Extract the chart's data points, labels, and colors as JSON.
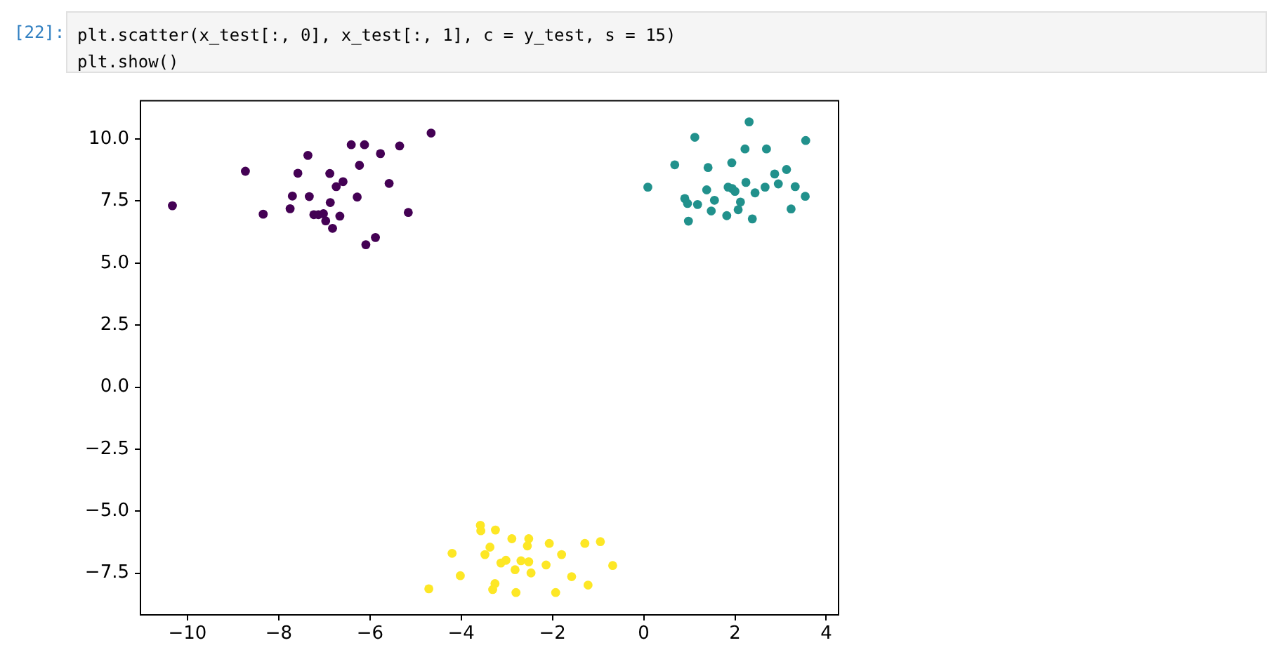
{
  "chart_data": {
    "type": "scatter",
    "annotations": [
      "[22]:",
      "plt.scatter(x_test[:, 0], x_test[:, 1], c = y_test, s = 15)",
      "plt.show()"
    ],
    "xlim": [
      -11.03,
      4.27
    ],
    "ylim": [
      -9.18,
      11.54
    ],
    "xticks": [
      {
        "value": -10,
        "label": "−10"
      },
      {
        "value": -8,
        "label": "−8"
      },
      {
        "value": -6,
        "label": "−6"
      },
      {
        "value": -4,
        "label": "−4"
      },
      {
        "value": -2,
        "label": "−2"
      },
      {
        "value": 0,
        "label": "0"
      },
      {
        "value": 2,
        "label": "2"
      },
      {
        "value": 4,
        "label": "4"
      }
    ],
    "yticks": [
      {
        "value": -7.5,
        "label": "−7.5"
      },
      {
        "value": -5,
        "label": "−5.0"
      },
      {
        "value": -2.5,
        "label": "−2.5"
      },
      {
        "value": 0,
        "label": "0.0"
      },
      {
        "value": 2.5,
        "label": "2.5"
      },
      {
        "value": 5,
        "label": "5.0"
      },
      {
        "value": 7.5,
        "label": "7.5"
      },
      {
        "value": 10,
        "label": "10.0"
      }
    ],
    "grid": false,
    "legend": false,
    "marker": "circle",
    "series": [
      {
        "color": "#440154",
        "x": [
          -10.33,
          -8.73,
          -8.34,
          -7.36,
          -7.58,
          -7.7,
          -7.75,
          -7.33,
          -7.23,
          -7.13,
          -7.02,
          -6.97,
          -6.87,
          -6.88,
          -6.74,
          -6.59,
          -6.82,
          -6.66,
          -6.41,
          -6.12,
          -6.23,
          -6.28,
          -5.77,
          -5.58,
          -5.35,
          -4.66,
          -5.16,
          -5.88,
          -6.09
        ],
        "values": [
          7.31,
          8.7,
          6.97,
          9.34,
          8.62,
          7.7,
          7.19,
          7.68,
          6.95,
          6.95,
          6.99,
          6.7,
          7.44,
          8.61,
          8.08,
          8.28,
          6.4,
          6.89,
          9.77,
          9.77,
          8.94,
          7.66,
          9.41,
          8.21,
          9.72,
          10.24,
          7.04,
          6.03,
          5.74
        ]
      },
      {
        "color": "#21918c",
        "x": [
          0.09,
          0.68,
          1.12,
          0.9,
          0.96,
          0.98,
          1.18,
          1.38,
          1.41,
          1.55,
          1.48,
          1.82,
          1.85,
          1.93,
          1.94,
          2.0,
          2.12,
          2.07,
          2.22,
          2.31,
          2.24,
          2.38,
          2.44,
          2.66,
          2.69,
          2.87,
          2.95,
          3.13,
          3.32,
          3.23,
          3.54,
          3.55
        ],
        "values": [
          8.06,
          8.96,
          10.07,
          7.6,
          7.4,
          6.69,
          7.36,
          7.95,
          8.85,
          7.53,
          7.1,
          6.91,
          8.06,
          9.04,
          8.0,
          7.89,
          7.46,
          7.15,
          9.6,
          10.69,
          8.25,
          6.78,
          7.83,
          8.06,
          9.6,
          8.59,
          8.19,
          8.77,
          8.08,
          7.18,
          7.69,
          9.94
        ]
      },
      {
        "color": "#fde725",
        "x": [
          -4.71,
          -4.2,
          -4.02,
          -3.58,
          -3.57,
          -3.25,
          -3.48,
          -3.37,
          -3.13,
          -3.02,
          -3.26,
          -3.31,
          -2.89,
          -2.82,
          -2.8,
          -2.69,
          -2.52,
          -2.55,
          -2.52,
          -2.47,
          -2.14,
          -2.07,
          -1.93,
          -1.8,
          -1.58,
          -1.29,
          -1.22,
          -0.95,
          -0.68
        ],
        "values": [
          -8.13,
          -6.7,
          -7.6,
          -5.57,
          -5.79,
          -5.76,
          -6.75,
          -6.45,
          -7.09,
          -6.98,
          -7.92,
          -8.16,
          -6.11,
          -7.36,
          -8.28,
          -7.0,
          -6.11,
          -6.4,
          -7.04,
          -7.49,
          -7.17,
          -6.3,
          -8.28,
          -6.75,
          -7.64,
          -6.3,
          -7.98,
          -6.23,
          -7.19
        ]
      }
    ]
  }
}
